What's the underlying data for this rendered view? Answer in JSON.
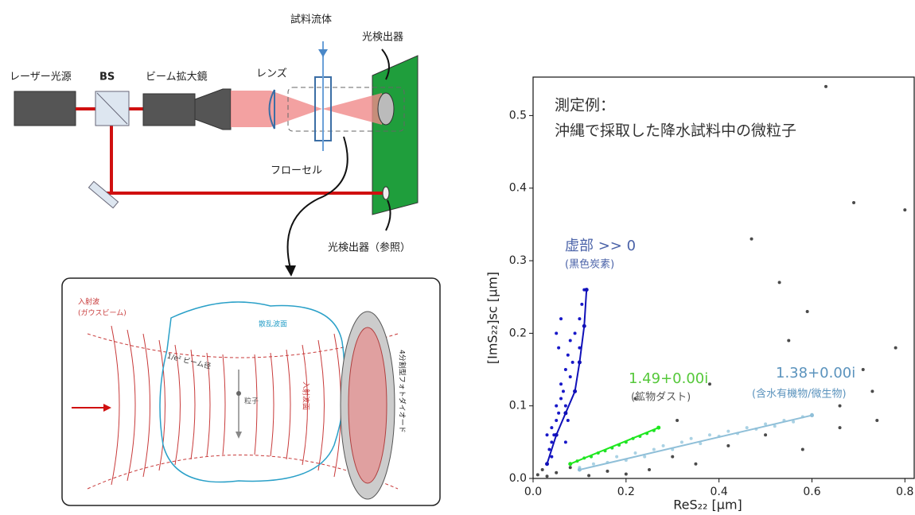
{
  "diagram": {
    "laser": "レーザー光源",
    "bs": "BS",
    "expander": "ビーム拡大鏡",
    "lens": "レンズ",
    "sample_flow": "試料流体",
    "detector": "光検出器",
    "flow_cell": "フローセル",
    "ref_detector": "光検出器（参照）",
    "inset": {
      "incident_wave": "入射波",
      "gaussian_beam": "(ガウスビーム)",
      "scattered_front": "散乱波面",
      "beam_diameter": "1/e² ビーム径",
      "incident_front": "入射波面",
      "particle": "粒子",
      "quad_photodiode": "4分割型フォトダイオード"
    }
  },
  "chart_data": {
    "type": "scatter",
    "xlabel": "ReS₂₂ [μm]",
    "ylabel": "[ImS₂₂]sc [μm]",
    "annotations": [
      "測定例：",
      "沖縄で採取した降水試料中の微粒子",
      "虚部 >> 0",
      "(黒色炭素)",
      "1.49+0.00i",
      "(鉱物ダスト)",
      "1.38+0.00i",
      "(含水有機物/微生物)"
    ],
    "annotation_colors": [
      "#333333",
      "#333333",
      "#4a62a8",
      "#4a62a8",
      "#55c83a",
      "#555555",
      "#5b93bd",
      "#5b93bd"
    ],
    "xlim": [
      0,
      0.82
    ],
    "ylim": [
      0,
      0.553
    ],
    "xticks": [
      {
        "value": 0,
        "label": "0.0"
      },
      0.2,
      0.4,
      0.6,
      0.8
    ],
    "yticks": [
      {
        "value": 0,
        "label": "0.0"
      },
      0.1,
      0.2,
      0.3,
      0.4,
      0.5
    ],
    "series": [
      {
        "style": "points",
        "color": "#4a4a4a",
        "x": [
          0.01,
          0.02,
          0.03,
          0.05,
          0.08,
          0.12,
          0.16,
          0.2,
          0.25,
          0.3,
          0.35,
          0.42,
          0.5,
          0.58,
          0.66,
          0.74,
          0.63,
          0.8,
          0.69,
          0.47,
          0.59,
          0.53,
          0.78,
          0.71,
          0.22,
          0.38,
          0.66,
          0.55,
          0.73,
          0.31
        ],
        "values": [
          0.005,
          0.012,
          0.003,
          0.008,
          0.015,
          0.004,
          0.01,
          0.006,
          0.012,
          0.03,
          0.02,
          0.045,
          0.06,
          0.04,
          0.07,
          0.08,
          0.54,
          0.37,
          0.38,
          0.33,
          0.23,
          0.27,
          0.18,
          0.15,
          0.11,
          0.13,
          0.1,
          0.19,
          0.12,
          0.08
        ]
      },
      {
        "style": "points",
        "color": "#aad2e4",
        "x": [
          0.1,
          0.13,
          0.16,
          0.18,
          0.2,
          0.22,
          0.24,
          0.26,
          0.28,
          0.3,
          0.32,
          0.34,
          0.36,
          0.38,
          0.4,
          0.42,
          0.44,
          0.46,
          0.48,
          0.5,
          0.52,
          0.54,
          0.56,
          0.58,
          0.6
        ],
        "values": [
          0.015,
          0.02,
          0.022,
          0.03,
          0.025,
          0.035,
          0.03,
          0.04,
          0.045,
          0.04,
          0.05,
          0.055,
          0.048,
          0.06,
          0.058,
          0.065,
          0.062,
          0.07,
          0.068,
          0.075,
          0.072,
          0.08,
          0.078,
          0.085,
          0.088
        ]
      },
      {
        "style": "points",
        "color": "#22e02a",
        "x": [
          0.08,
          0.095,
          0.11,
          0.125,
          0.14,
          0.155,
          0.17,
          0.185,
          0.2,
          0.215,
          0.23,
          0.245,
          0.26,
          0.27
        ],
        "values": [
          0.02,
          0.024,
          0.028,
          0.03,
          0.035,
          0.038,
          0.042,
          0.046,
          0.05,
          0.055,
          0.058,
          0.062,
          0.066,
          0.07
        ]
      },
      {
        "style": "points",
        "color": "#1818c8",
        "x": [
          0.03,
          0.035,
          0.04,
          0.04,
          0.045,
          0.05,
          0.05,
          0.055,
          0.06,
          0.06,
          0.065,
          0.07,
          0.07,
          0.075,
          0.08,
          0.08,
          0.085,
          0.09,
          0.09,
          0.1,
          0.1,
          0.105,
          0.11,
          0.05,
          0.06,
          0.04,
          0.07,
          0.03,
          0.055,
          0.075
        ],
        "values": [
          0.02,
          0.04,
          0.05,
          0.07,
          0.06,
          0.08,
          0.1,
          0.09,
          0.11,
          0.13,
          0.12,
          0.15,
          0.1,
          0.17,
          0.14,
          0.19,
          0.16,
          0.2,
          0.12,
          0.22,
          0.18,
          0.24,
          0.26,
          0.2,
          0.22,
          0.03,
          0.05,
          0.06,
          0.18,
          0.08
        ]
      },
      {
        "style": "line",
        "color": "#8fbfd8",
        "x": [
          0.1,
          0.6
        ],
        "values": [
          0.012,
          0.087
        ]
      },
      {
        "style": "line",
        "color": "#1ee81e",
        "x": [
          0.08,
          0.27
        ],
        "values": [
          0.02,
          0.07
        ]
      },
      {
        "style": "line",
        "color": "#1010b8",
        "x": [
          0.03,
          0.05,
          0.07,
          0.09,
          0.1,
          0.11,
          0.115
        ],
        "values": [
          0.02,
          0.06,
          0.09,
          0.12,
          0.16,
          0.21,
          0.26
        ]
      }
    ]
  }
}
